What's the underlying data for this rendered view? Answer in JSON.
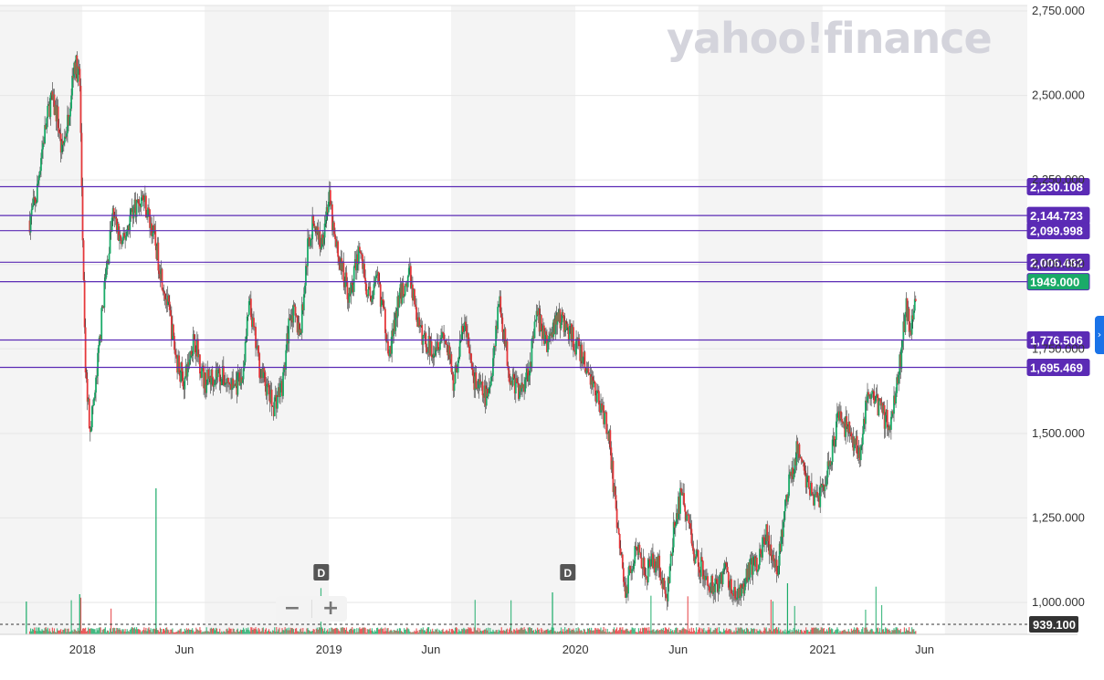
{
  "watermark": "yahoo!finance",
  "zoom": {
    "minus_label": "−",
    "plus_label": "+"
  },
  "side_tab_icon": "chevron-right-icon",
  "chart_data": {
    "type": "candlestick",
    "title": "",
    "xlabel": "",
    "ylabel": "",
    "x_ticks": [
      "2018",
      "Jun",
      "2019",
      "Jun",
      "2020",
      "Jun",
      "2021",
      "Jun"
    ],
    "y_ticks": [
      "1,000.000",
      "1,250.000",
      "1,500.000",
      "1,750.000",
      "2,000.000",
      "2,250.000",
      "2,500.000",
      "2,750.000"
    ],
    "ylim": [
      939.1,
      2775
    ],
    "xlim": [
      "2017-09-01",
      "2021-10-31"
    ],
    "colors": {
      "up": "#1aab68",
      "down": "#e5383b",
      "level": "#5b2bb5",
      "price_tag": "#1aab68",
      "dashed_tag": "#333333"
    },
    "horizontal_levels": [
      {
        "value": 2230.108,
        "label": "2,230.108"
      },
      {
        "value": 2144.723,
        "label": "2,144.723"
      },
      {
        "value": 2099.998,
        "label": "2,099.998"
      },
      {
        "value": 2006.482,
        "label": "2,006.482"
      },
      {
        "value": 1949.0,
        "label": "1949.000",
        "is_price": true
      },
      {
        "value": 1776.506,
        "label": "1,776.506"
      },
      {
        "value": 1695.469,
        "label": "1,695.469"
      }
    ],
    "reference_line": {
      "value": 939.1,
      "label": "939.100"
    },
    "event_markers": [
      {
        "date": "2018-12-20",
        "label": "D"
      },
      {
        "date": "2019-12-20",
        "label": "D"
      }
    ],
    "price_path": [
      [
        "2017-10-15",
        2130
      ],
      [
        "2017-10-25",
        2200
      ],
      [
        "2017-11-01",
        2330
      ],
      [
        "2017-11-15",
        2490
      ],
      [
        "2017-11-25",
        2440
      ],
      [
        "2017-12-01",
        2330
      ],
      [
        "2017-12-10",
        2420
      ],
      [
        "2017-12-20",
        2600
      ],
      [
        "2017-12-28",
        2550
      ],
      [
        "2018-01-05",
        1700
      ],
      [
        "2018-01-12",
        1520
      ],
      [
        "2018-01-20",
        1620
      ],
      [
        "2018-02-01",
        1900
      ],
      [
        "2018-02-15",
        2150
      ],
      [
        "2018-03-01",
        2050
      ],
      [
        "2018-03-15",
        2160
      ],
      [
        "2018-04-01",
        2200
      ],
      [
        "2018-04-15",
        2100
      ],
      [
        "2018-04-25",
        2000
      ],
      [
        "2018-05-10",
        1850
      ],
      [
        "2018-05-20",
        1720
      ],
      [
        "2018-06-01",
        1650
      ],
      [
        "2018-06-15",
        1790
      ],
      [
        "2018-07-01",
        1650
      ],
      [
        "2018-07-20",
        1680
      ],
      [
        "2018-08-10",
        1640
      ],
      [
        "2018-08-25",
        1650
      ],
      [
        "2018-09-05",
        1880
      ],
      [
        "2018-09-20",
        1700
      ],
      [
        "2018-10-10",
        1580
      ],
      [
        "2018-10-25",
        1650
      ],
      [
        "2018-11-05",
        1870
      ],
      [
        "2018-11-20",
        1800
      ],
      [
        "2018-12-01",
        2060
      ],
      [
        "2018-12-10",
        2130
      ],
      [
        "2018-12-20",
        2060
      ],
      [
        "2019-01-01",
        2200
      ],
      [
        "2019-01-10",
        2060
      ],
      [
        "2019-01-20",
        1990
      ],
      [
        "2019-02-01",
        1900
      ],
      [
        "2019-02-15",
        2050
      ],
      [
        "2019-03-01",
        1900
      ],
      [
        "2019-03-15",
        1950
      ],
      [
        "2019-04-01",
        1740
      ],
      [
        "2019-04-15",
        1900
      ],
      [
        "2019-05-01",
        1970
      ],
      [
        "2019-05-15",
        1800
      ],
      [
        "2019-06-01",
        1750
      ],
      [
        "2019-06-20",
        1800
      ],
      [
        "2019-07-05",
        1650
      ],
      [
        "2019-07-20",
        1830
      ],
      [
        "2019-08-05",
        1650
      ],
      [
        "2019-08-25",
        1600
      ],
      [
        "2019-09-10",
        1900
      ],
      [
        "2019-09-25",
        1680
      ],
      [
        "2019-10-10",
        1620
      ],
      [
        "2019-10-25",
        1700
      ],
      [
        "2019-11-05",
        1850
      ],
      [
        "2019-11-20",
        1760
      ],
      [
        "2019-12-05",
        1850
      ],
      [
        "2019-12-20",
        1810
      ],
      [
        "2020-01-05",
        1750
      ],
      [
        "2020-01-20",
        1680
      ],
      [
        "2020-02-05",
        1600
      ],
      [
        "2020-02-20",
        1500
      ],
      [
        "2020-03-01",
        1250
      ],
      [
        "2020-03-15",
        1030
      ],
      [
        "2020-04-01",
        1180
      ],
      [
        "2020-04-15",
        1090
      ],
      [
        "2020-05-01",
        1130
      ],
      [
        "2020-05-15",
        1000
      ],
      [
        "2020-05-25",
        1200
      ],
      [
        "2020-06-05",
        1320
      ],
      [
        "2020-06-15",
        1250
      ],
      [
        "2020-06-25",
        1150
      ],
      [
        "2020-07-10",
        1080
      ],
      [
        "2020-07-25",
        1040
      ],
      [
        "2020-08-10",
        1100
      ],
      [
        "2020-08-25",
        1000
      ],
      [
        "2020-09-10",
        1080
      ],
      [
        "2020-09-25",
        1120
      ],
      [
        "2020-10-10",
        1200
      ],
      [
        "2020-10-25",
        1080
      ],
      [
        "2020-11-10",
        1330
      ],
      [
        "2020-11-25",
        1460
      ],
      [
        "2020-12-10",
        1350
      ],
      [
        "2020-12-25",
        1300
      ],
      [
        "2021-01-10",
        1400
      ],
      [
        "2021-01-25",
        1550
      ],
      [
        "2021-02-10",
        1500
      ],
      [
        "2021-02-25",
        1450
      ],
      [
        "2021-03-10",
        1620
      ],
      [
        "2021-03-25",
        1580
      ],
      [
        "2021-04-10",
        1520
      ],
      [
        "2021-04-25",
        1700
      ],
      [
        "2021-05-05",
        1880
      ],
      [
        "2021-05-12",
        1800
      ],
      [
        "2021-05-20",
        1949
      ]
    ]
  }
}
